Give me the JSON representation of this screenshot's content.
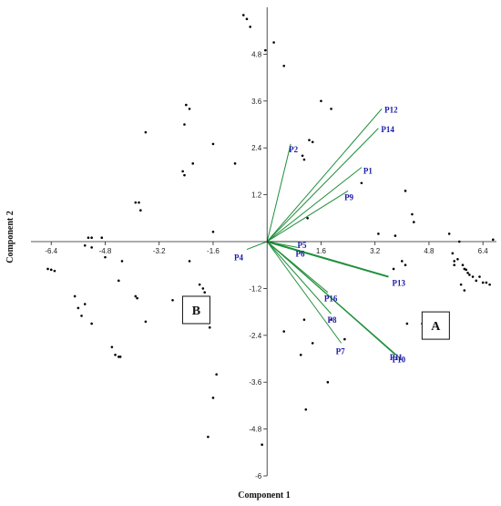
{
  "chart_data": {
    "type": "scatter",
    "xlabel": "Component 1",
    "ylabel": "Component 2",
    "xlim": [
      -7.0,
      6.8
    ],
    "ylim": [
      -6.0,
      6.0
    ],
    "x_ticks": [
      -6.4,
      -4.8,
      -3.2,
      -1.6,
      1.6,
      3.2,
      4.8,
      6.4
    ],
    "y_ticks": [
      -6,
      -4.8,
      -3.6,
      -2.4,
      -1.2,
      1.2,
      2.4,
      3.6,
      4.8
    ],
    "colors": {
      "vector": "#1f8f3a",
      "point": "#000000",
      "vector_label": "#1a1aa8"
    },
    "points": [
      [
        -0.7,
        5.8
      ],
      [
        -0.6,
        5.7
      ],
      [
        -0.5,
        5.5
      ],
      [
        -0.05,
        4.9
      ],
      [
        0.2,
        5.1
      ],
      [
        0.5,
        4.5
      ],
      [
        1.6,
        3.6
      ],
      [
        1.9,
        3.4
      ],
      [
        1.25,
        2.6
      ],
      [
        1.35,
        2.55
      ],
      [
        1.05,
        2.2
      ],
      [
        1.1,
        2.1
      ],
      [
        -3.6,
        2.8
      ],
      [
        -2.4,
        3.5
      ],
      [
        -2.3,
        3.4
      ],
      [
        -2.45,
        3.0
      ],
      [
        -1.6,
        2.5
      ],
      [
        -0.95,
        2.0
      ],
      [
        -2.2,
        2.0
      ],
      [
        -2.5,
        1.8
      ],
      [
        -2.45,
        1.7
      ],
      [
        -3.9,
        1.0
      ],
      [
        -3.8,
        1.0
      ],
      [
        -3.75,
        0.8
      ],
      [
        -1.6,
        0.25
      ],
      [
        1.2,
        0.6
      ],
      [
        -5.3,
        0.1
      ],
      [
        -5.2,
        0.1
      ],
      [
        -5.4,
        -0.1
      ],
      [
        -5.2,
        -0.15
      ],
      [
        -4.9,
        0.1
      ],
      [
        -6.5,
        -0.7
      ],
      [
        -6.4,
        -0.72
      ],
      [
        -6.3,
        -0.75
      ],
      [
        -4.8,
        -0.4
      ],
      [
        -4.3,
        -0.5
      ],
      [
        -5.7,
        -1.4
      ],
      [
        -5.6,
        -1.7
      ],
      [
        -5.4,
        -1.6
      ],
      [
        -5.5,
        -1.9
      ],
      [
        -5.2,
        -2.1
      ],
      [
        -4.4,
        -1.0
      ],
      [
        -3.9,
        -1.4
      ],
      [
        -3.85,
        -1.45
      ],
      [
        -3.6,
        -2.05
      ],
      [
        -2.8,
        -1.5
      ],
      [
        -2.0,
        -1.1
      ],
      [
        -1.9,
        -1.2
      ],
      [
        -1.85,
        -1.3
      ],
      [
        -2.3,
        -0.5
      ],
      [
        -4.6,
        -2.7
      ],
      [
        -4.5,
        -2.9
      ],
      [
        -4.4,
        -2.95
      ],
      [
        -4.35,
        -2.95
      ],
      [
        -1.7,
        -2.2
      ],
      [
        -1.5,
        -3.4
      ],
      [
        -1.6,
        -4.0
      ],
      [
        -1.75,
        -5.0
      ],
      [
        -0.15,
        -5.2
      ],
      [
        0.5,
        -2.3
      ],
      [
        1.1,
        -2.0
      ],
      [
        1.9,
        -2.0
      ],
      [
        2.3,
        -2.5
      ],
      [
        1.35,
        -2.6
      ],
      [
        1.0,
        -2.9
      ],
      [
        1.15,
        -4.3
      ],
      [
        1.8,
        -3.6
      ],
      [
        2.8,
        1.5
      ],
      [
        3.3,
        0.2
      ],
      [
        3.8,
        0.15
      ],
      [
        4.1,
        1.3
      ],
      [
        4.3,
        0.7
      ],
      [
        4.35,
        0.5
      ],
      [
        4.0,
        -0.5
      ],
      [
        4.1,
        -0.6
      ],
      [
        3.75,
        -0.7
      ],
      [
        4.15,
        -2.1
      ],
      [
        4.6,
        -2.1
      ],
      [
        5.4,
        0.2
      ],
      [
        5.7,
        0.0
      ],
      [
        5.5,
        -0.3
      ],
      [
        5.55,
        -0.5
      ],
      [
        5.55,
        -0.6
      ],
      [
        5.65,
        -0.45
      ],
      [
        5.8,
        -0.6
      ],
      [
        5.85,
        -0.7
      ],
      [
        5.9,
        -0.72
      ],
      [
        5.95,
        -0.8
      ],
      [
        6.0,
        -0.85
      ],
      [
        6.1,
        -0.9
      ],
      [
        6.2,
        -1.0
      ],
      [
        6.3,
        -0.9
      ],
      [
        6.4,
        -1.05
      ],
      [
        6.5,
        -1.05
      ],
      [
        6.6,
        -1.1
      ],
      [
        5.75,
        -1.1
      ],
      [
        5.85,
        -1.25
      ],
      [
        6.7,
        0.05
      ]
    ],
    "vectors": [
      {
        "name": "P1",
        "x": 2.8,
        "y": 1.9
      },
      {
        "name": "P2",
        "x": 0.7,
        "y": 2.5
      },
      {
        "name": "P4",
        "x": -0.6,
        "y": -0.2
      },
      {
        "name": "P5",
        "x": 0.9,
        "y": 0.0
      },
      {
        "name": "P6",
        "x": 0.9,
        "y": -0.15
      },
      {
        "name": "P7",
        "x": 2.2,
        "y": -2.6
      },
      {
        "name": "P8",
        "x": 1.9,
        "y": -1.85
      },
      {
        "name": "P9",
        "x": 2.4,
        "y": 1.3
      },
      {
        "name": "P10",
        "x": 3.9,
        "y": -2.95
      },
      {
        "name": "P11",
        "x": 3.8,
        "y": -2.9
      },
      {
        "name": "P12",
        "x": 3.4,
        "y": 3.4
      },
      {
        "name": "P13",
        "x": 3.6,
        "y": -0.9
      },
      {
        "name": "P14",
        "x": 3.3,
        "y": 2.9
      },
      {
        "name": "P16",
        "x": 1.8,
        "y": -1.3
      }
    ],
    "annotations": [
      {
        "text": "A",
        "x": 5.0,
        "y": -2.15
      },
      {
        "text": "B",
        "x": -2.1,
        "y": -1.75
      }
    ]
  }
}
